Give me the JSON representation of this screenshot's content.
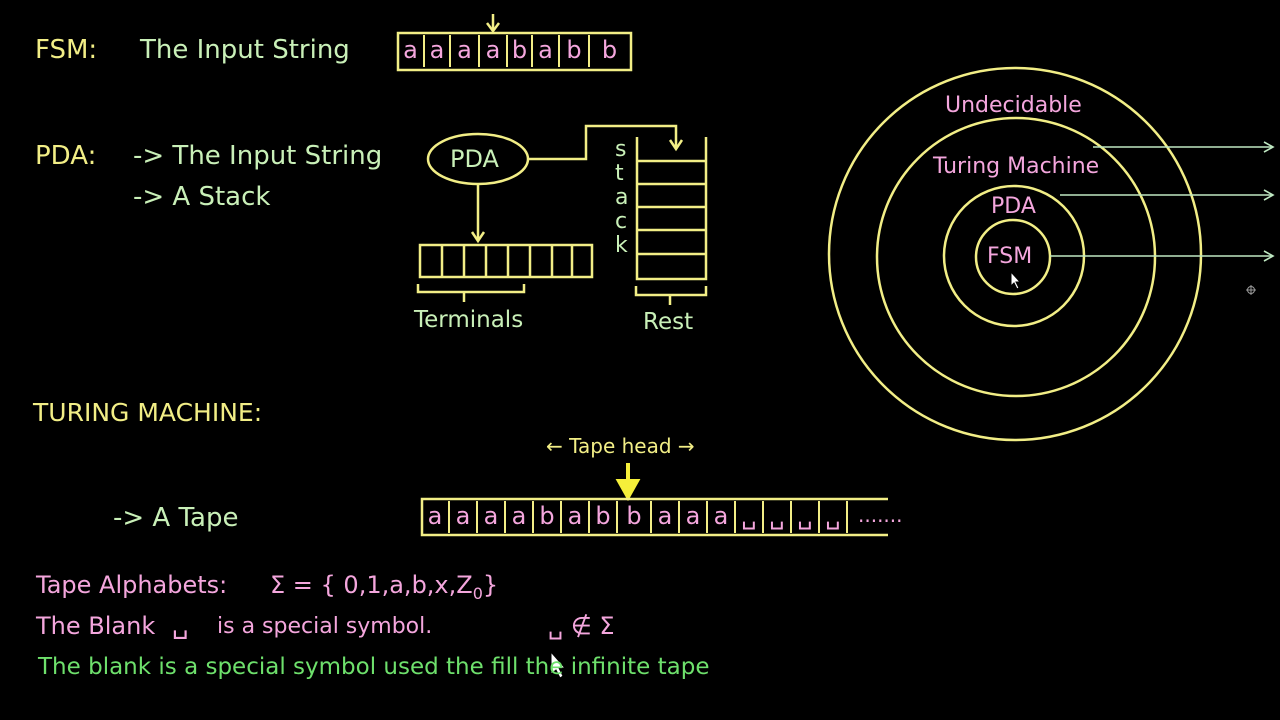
{
  "colors": {
    "yellow": "#f2ee86",
    "green_text": "#c9f0b8",
    "pink": "#f4a6dd",
    "bright_green": "#6ee06c",
    "arrow_green": "#bfe8c2"
  },
  "fsm": {
    "label": "FSM:",
    "text": "The Input String",
    "string": [
      "a",
      "a",
      "a",
      "a",
      "b",
      "a",
      "b",
      "b"
    ]
  },
  "pda": {
    "label": "PDA:",
    "item1": "-> The Input String",
    "item2": "-> A Stack",
    "node": "PDA",
    "stack_letters": [
      "s",
      "t",
      "a",
      "c",
      "k"
    ],
    "terminals": "Terminals",
    "rest": "Rest"
  },
  "tm": {
    "label": "TURING MACHINE:",
    "tape_label": "-> A Tape",
    "tape_head": "← Tape head →",
    "tape": [
      "a",
      "a",
      "a",
      "a",
      "b",
      "a",
      "b",
      "b",
      "a",
      "a",
      "a",
      "␣",
      "␣",
      "␣",
      "␣"
    ],
    "dots": "......."
  },
  "alphabets": {
    "label": "Tape Alphabets:",
    "sigma": "Σ = { 0,1,a,b,x,Z",
    "subscript": "0",
    "close": "}"
  },
  "blank": {
    "prefix": "The Blank",
    "symbol": "␣",
    "suffix": "is a special symbol.",
    "relation": "␣ ∉ Σ"
  },
  "note": "The blank is a special symbol used the fill the infinite tape",
  "hierarchy": {
    "outer": "Undecidable",
    "tm": "Turing Machine",
    "pda": "PDA",
    "fsm": "FSM"
  }
}
